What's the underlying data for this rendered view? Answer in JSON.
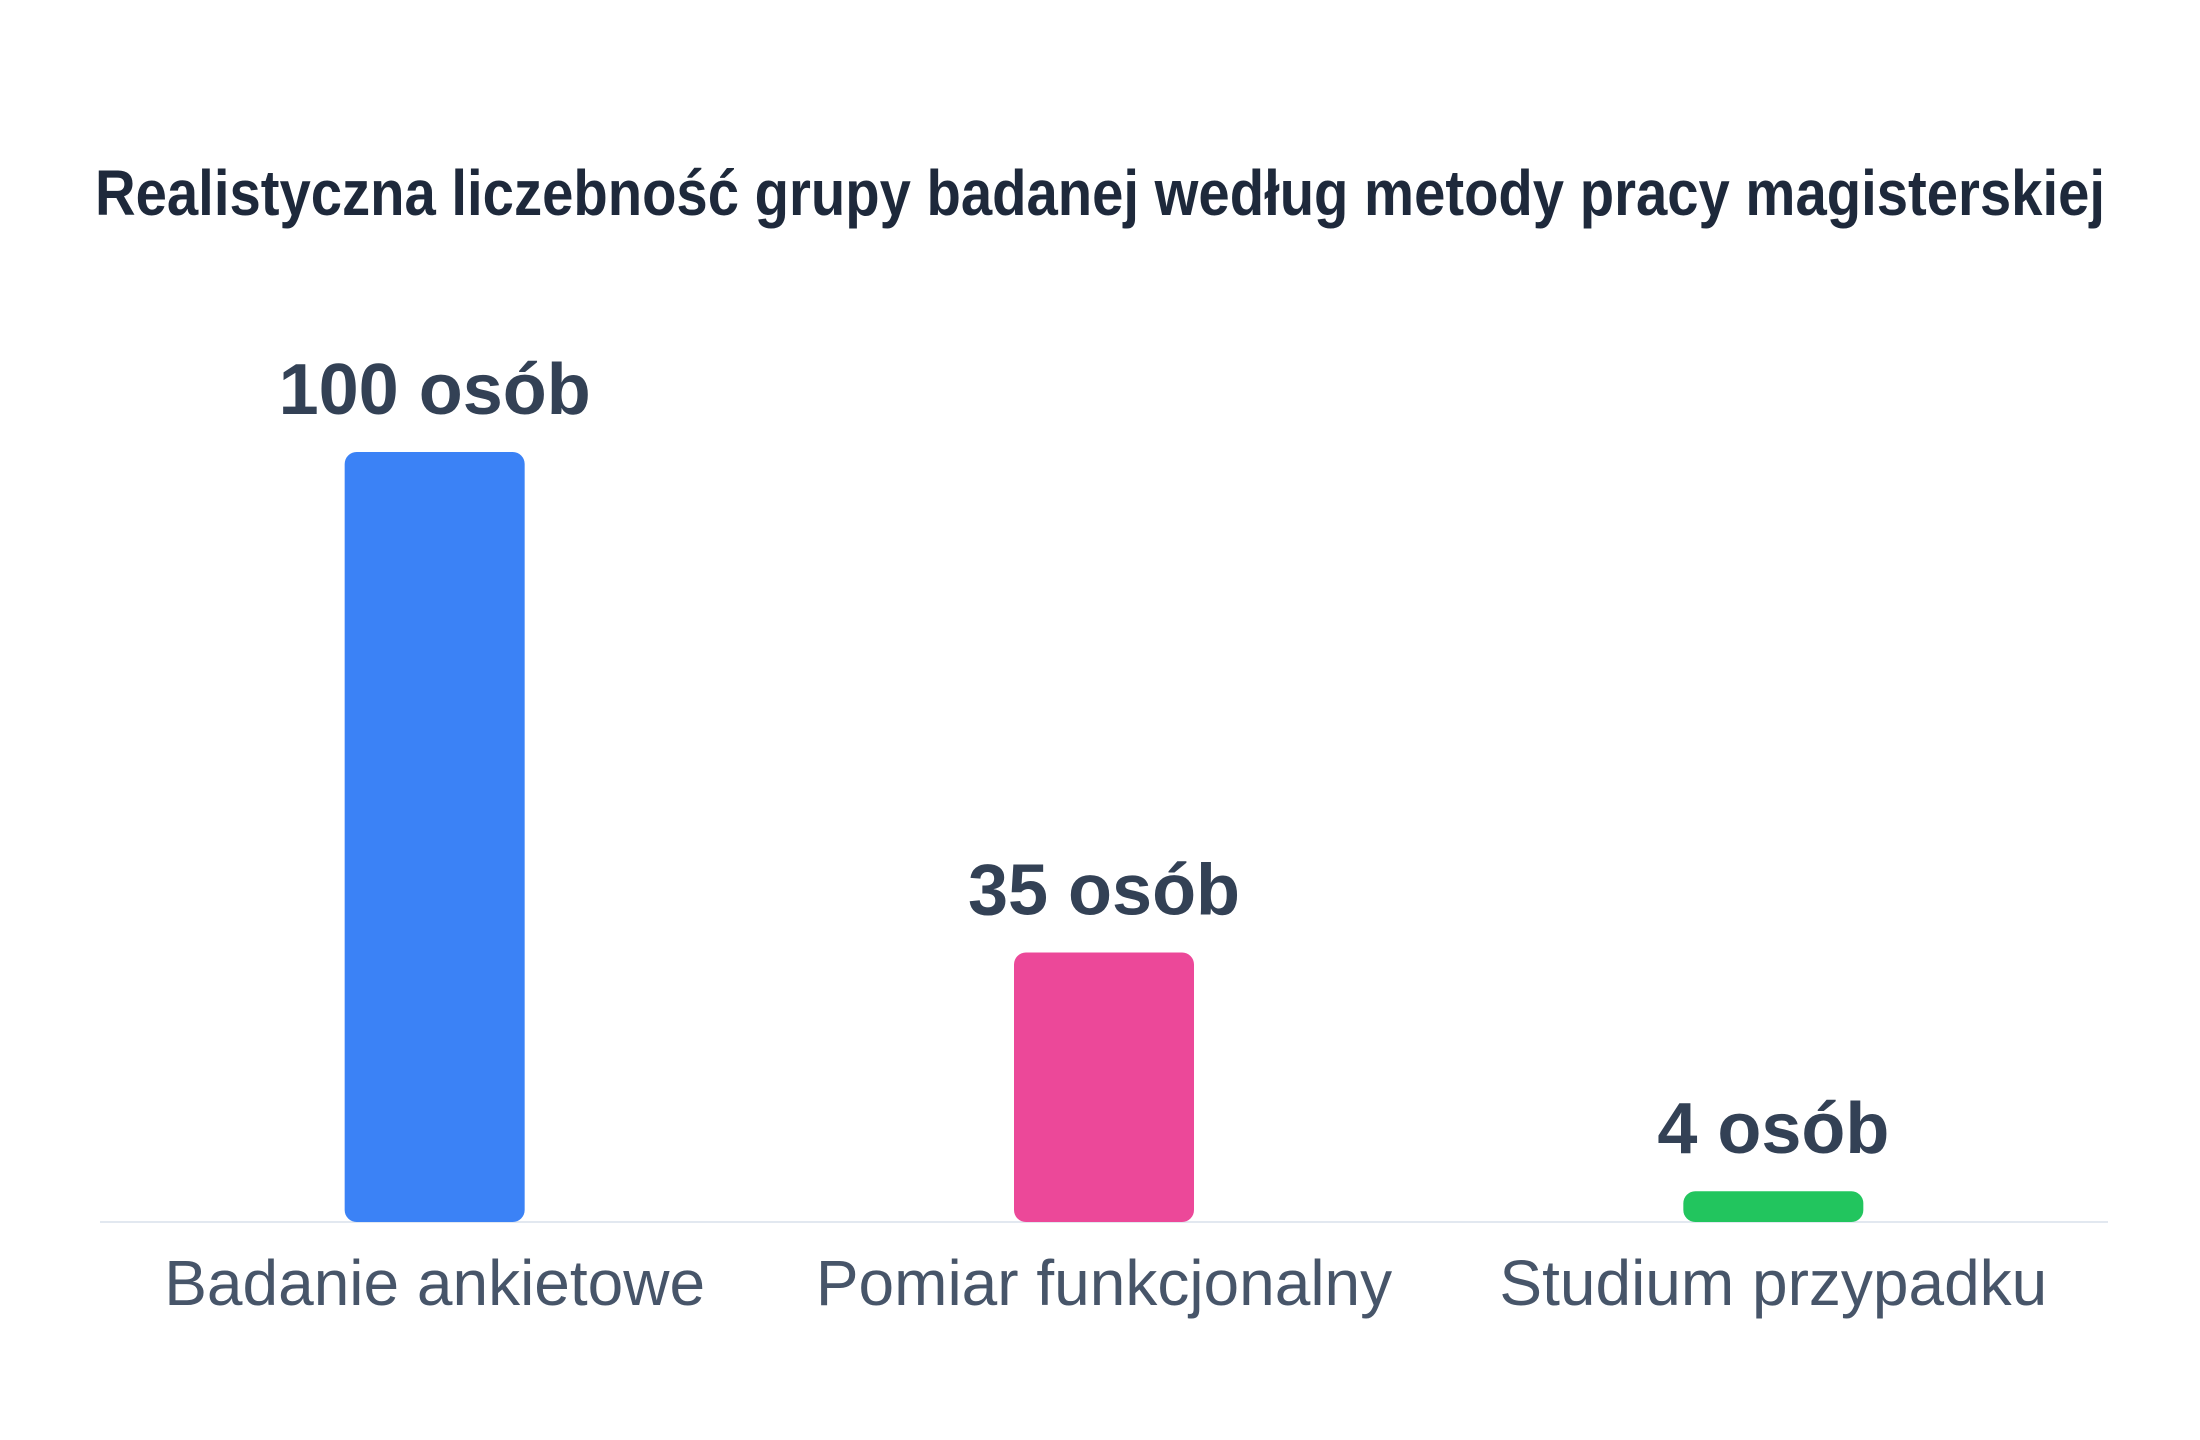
{
  "chart_data": {
    "type": "bar",
    "title": "Realistyczna liczebność grupy badanej według metody pracy magisterskiej",
    "categories": [
      "Badanie ankietowe",
      "Pomiar funkcjonalny",
      "Studium przypadku"
    ],
    "values": [
      100,
      35,
      4
    ],
    "value_labels": [
      "100 osób",
      "35 osób",
      "4 osób"
    ],
    "colors": [
      "#3b82f6",
      "#ec4899",
      "#22c55e"
    ],
    "xlabel": "",
    "ylabel": "",
    "ylim": [
      0,
      100
    ],
    "grid": false,
    "legend": "none"
  }
}
